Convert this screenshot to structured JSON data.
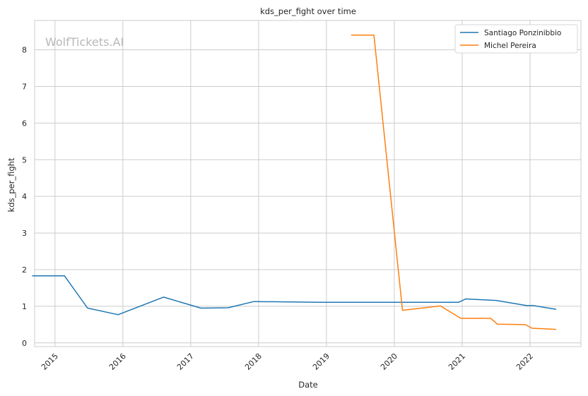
{
  "chart_data": {
    "type": "line",
    "title": "kds_per_fight over time",
    "xlabel": "Date",
    "ylabel": "kds_per_fight",
    "watermark": "WolfTickets.AI",
    "x_ticks": [
      "2015",
      "2016",
      "2017",
      "2018",
      "2019",
      "2020",
      "2021",
      "2022"
    ],
    "y_ticks": [
      "0",
      "1",
      "2",
      "3",
      "4",
      "5",
      "6",
      "7",
      "8"
    ],
    "xlim": [
      2014.7,
      2022.75
    ],
    "ylim": [
      -0.1,
      8.8
    ],
    "grid": true,
    "legend_position": "top-right",
    "series": [
      {
        "name": "Santiago Ponzinibbio",
        "color": "#1f77b4",
        "x": [
          2014.67,
          2015.14,
          2015.48,
          2015.93,
          2016.6,
          2017.15,
          2017.55,
          2017.93,
          2018.9,
          2019.9,
          2020.95,
          2021.05,
          2021.5,
          2021.95,
          2022.05,
          2022.38
        ],
        "y": [
          1.83,
          1.83,
          0.95,
          0.77,
          1.25,
          0.95,
          0.96,
          1.13,
          1.11,
          1.11,
          1.11,
          1.2,
          1.16,
          1.02,
          1.02,
          0.92
        ]
      },
      {
        "name": "Michel Pereira",
        "color": "#ff7f0e",
        "x": [
          2019.37,
          2019.7,
          2020.12,
          2020.68,
          2020.98,
          2021.42,
          2021.52,
          2021.93,
          2022.03,
          2022.38
        ],
        "y": [
          8.4,
          8.4,
          0.89,
          1.01,
          0.67,
          0.67,
          0.51,
          0.5,
          0.4,
          0.37
        ]
      }
    ]
  }
}
